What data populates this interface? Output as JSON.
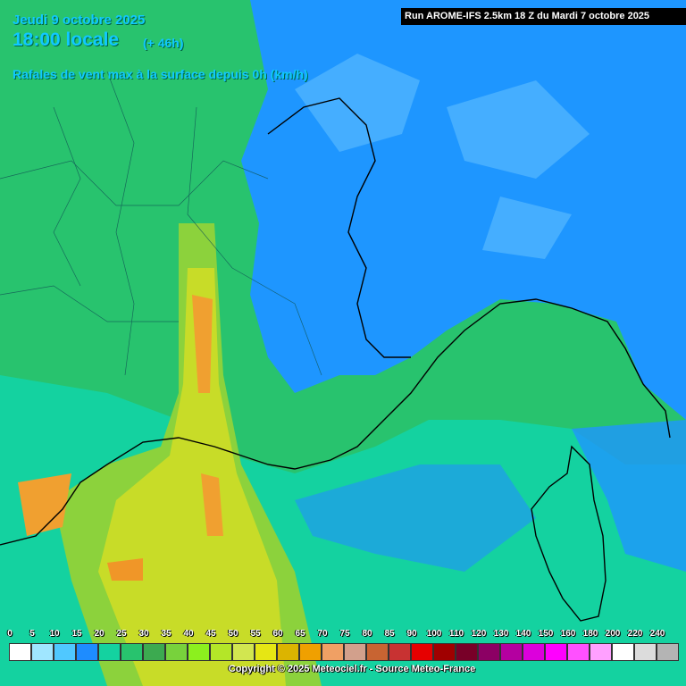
{
  "header": {
    "date": "Jeudi 9 octobre 2025",
    "time": "18:00 locale",
    "lead": "(+ 46h)",
    "parameter": "Rafales de vent max à la surface depuis 0h (km/h)",
    "run": "Run AROME-IFS 2.5km 18 Z du Mardi 7 octobre 2025"
  },
  "legend": {
    "items": [
      {
        "label": 0,
        "color": "#ffffff"
      },
      {
        "label": 5,
        "color": "#a0e6ff"
      },
      {
        "label": 10,
        "color": "#50c8ff"
      },
      {
        "label": 15,
        "color": "#1e8cff"
      },
      {
        "label": 20,
        "color": "#14d2a0"
      },
      {
        "label": 25,
        "color": "#28c36e"
      },
      {
        "label": 30,
        "color": "#3caa50"
      },
      {
        "label": 35,
        "color": "#78d23c"
      },
      {
        "label": 40,
        "color": "#8cf01e"
      },
      {
        "label": 45,
        "color": "#b4e628"
      },
      {
        "label": 50,
        "color": "#d2e650"
      },
      {
        "label": 55,
        "color": "#e6e614"
      },
      {
        "label": 60,
        "color": "#dcb400"
      },
      {
        "label": 65,
        "color": "#f0a000"
      },
      {
        "label": 70,
        "color": "#f0a064"
      },
      {
        "label": 75,
        "color": "#d2a08c"
      },
      {
        "label": 80,
        "color": "#c86432"
      },
      {
        "label": 85,
        "color": "#c83232"
      },
      {
        "label": 90,
        "color": "#e60000"
      },
      {
        "label": 100,
        "color": "#a00000"
      },
      {
        "label": 110,
        "color": "#780028"
      },
      {
        "label": 120,
        "color": "#8c0064"
      },
      {
        "label": 130,
        "color": "#b400a0"
      },
      {
        "label": 140,
        "color": "#dc00dc"
      },
      {
        "label": 150,
        "color": "#ff00ff"
      },
      {
        "label": 160,
        "color": "#ff50ff"
      },
      {
        "label": 180,
        "color": "#ffa0ff"
      },
      {
        "label": 200,
        "color": "#ffffff"
      },
      {
        "label": 220,
        "color": "#dcdcdc"
      },
      {
        "label": 240,
        "color": "#b4b4b4"
      }
    ]
  },
  "footer": {
    "copyright": "Copyright © 2025 Meteociel.fr - Source Meteo-France"
  }
}
